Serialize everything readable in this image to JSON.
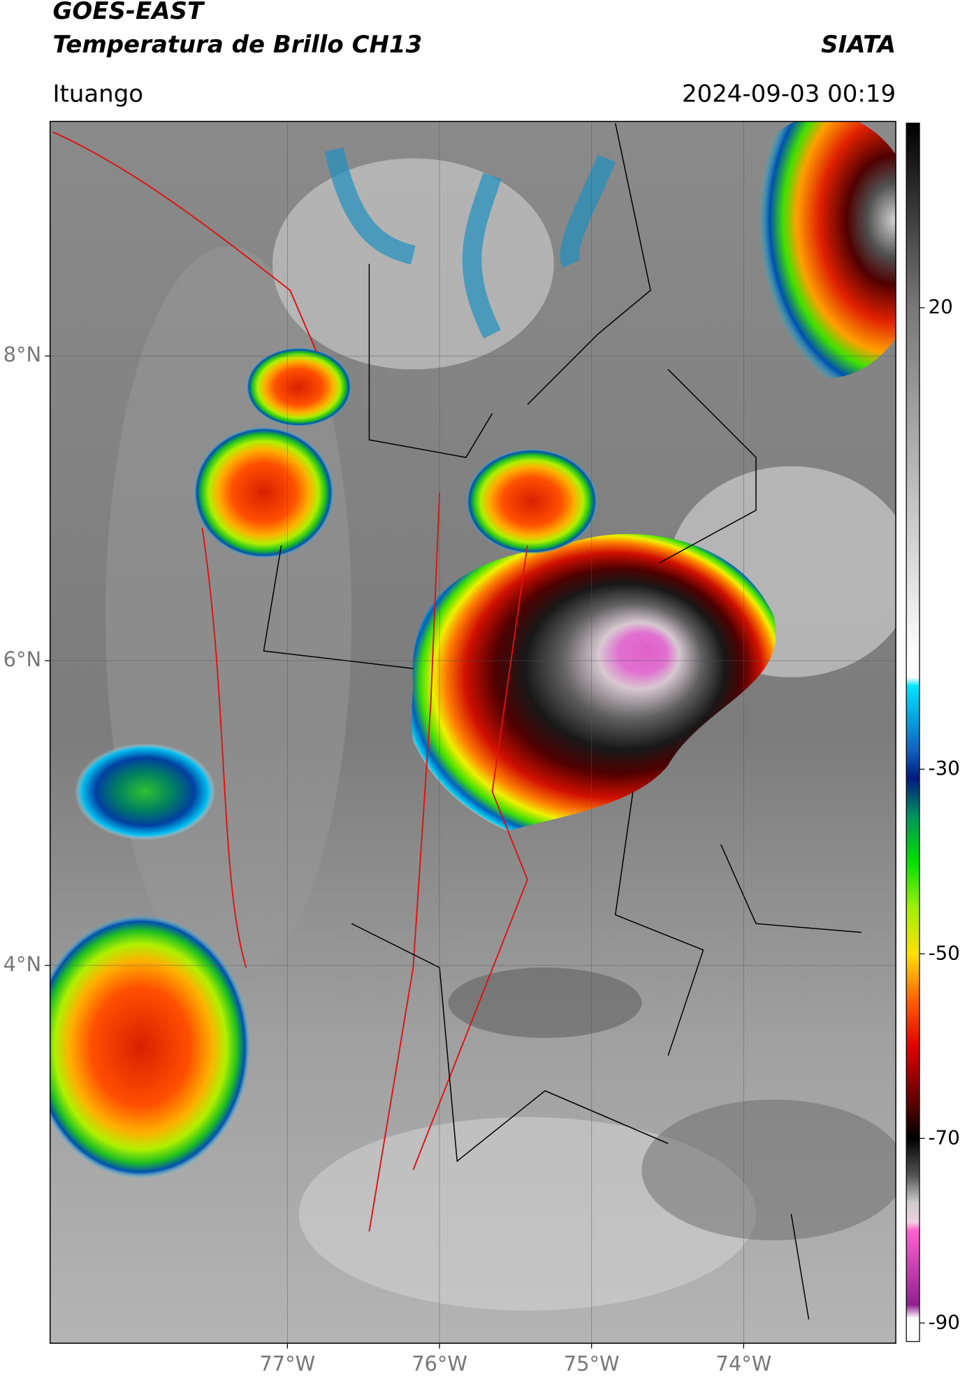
{
  "header": {
    "title": "GOES-EAST",
    "subtitle": "Temperatura de Brillo CH13",
    "agency": "SIATA",
    "location": "Ituango",
    "datetime": "2024-09-03 00:19"
  },
  "map": {
    "xlim": [
      -78.56,
      -73.0
    ],
    "ylim": [
      1.52,
      9.54
    ],
    "xticks": [
      {
        "value": -77,
        "label": "77°W"
      },
      {
        "value": -76,
        "label": "76°W"
      },
      {
        "value": -75,
        "label": "75°W"
      },
      {
        "value": -74,
        "label": "74°W"
      }
    ],
    "yticks": [
      {
        "value": 8,
        "label": "8°N"
      },
      {
        "value": 6,
        "label": "6°N"
      },
      {
        "value": 4,
        "label": "4°N"
      }
    ],
    "grid": true
  },
  "colorbar": {
    "clim": [
      -92,
      40
    ],
    "ticks": [
      20,
      -30,
      -50,
      -70,
      -90
    ]
  }
}
